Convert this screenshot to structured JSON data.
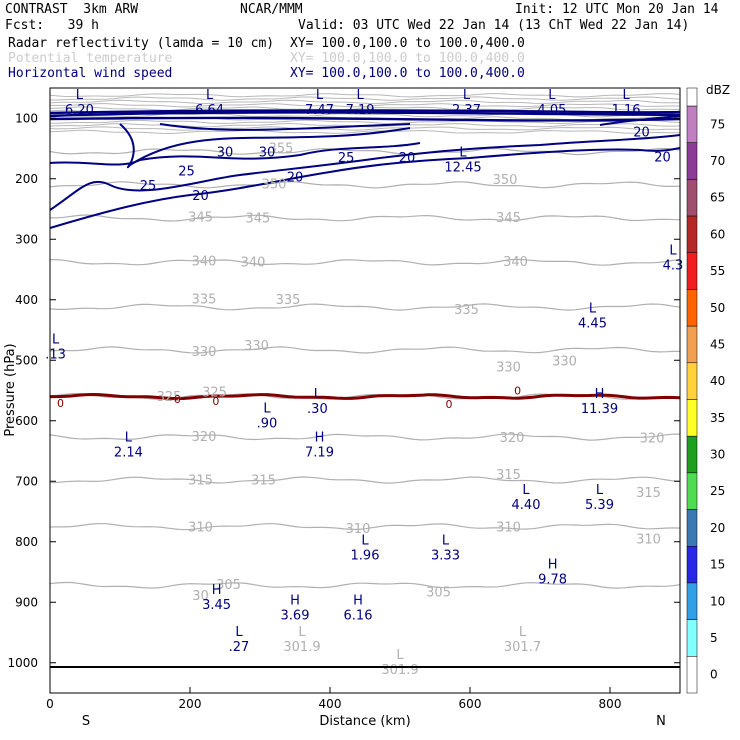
{
  "header": {
    "experiment": "CONTRAST  3km ARW",
    "center": "NCAR/MMM",
    "init": "Init: 12 UTC Mon 20 Jan 14",
    "fcst": "Fcst:   39 h",
    "valid": "Valid: 03 UTC Wed 22 Jan 14 (13 ChT Wed 22 Jan 14)",
    "field1_name": "Radar reflectivity (lamda = 10 cm)",
    "field1_xy": "XY= 100.0,100.0 to 100.0,400.0",
    "field2_name": "Potential temperature",
    "field2_xy": "XY= 100.0,100.0 to 100.0,400.0",
    "field3_name": "Horizontal wind speed",
    "field3_xy": "XY= 100.0,100.0 to 100.0,400.0"
  },
  "colors": {
    "wind": "#000080",
    "theta": "#b0b0b0",
    "freezing": "#800000",
    "axis": "#000000"
  },
  "chart_data": {
    "type": "cross-section",
    "xlabel": "Distance (km)",
    "ylabel": "Pressure (hPa)",
    "xlim": [
      0,
      900
    ],
    "ylim": [
      1050,
      50
    ],
    "xticks": [
      "0",
      "200",
      "400",
      "600",
      "800"
    ],
    "yticks": [
      "100",
      "200",
      "300",
      "400",
      "500",
      "600",
      "700",
      "800",
      "900",
      "1000"
    ],
    "direction_left": "S",
    "direction_right": "N",
    "theta_levels": [
      {
        "label": "355",
        "p": 155
      },
      {
        "label": "350",
        "p": 210
      },
      {
        "label": "345",
        "p": 265
      },
      {
        "label": "340",
        "p": 338
      },
      {
        "label": "335",
        "p": 412
      },
      {
        "label": "330",
        "p": 483
      },
      {
        "label": "325",
        "p": 560
      },
      {
        "label": "320",
        "p": 627
      },
      {
        "label": "315",
        "p": 698
      },
      {
        "label": "310",
        "p": 775
      },
      {
        "label": "305",
        "p": 872
      }
    ],
    "theta_labels": [
      {
        "text": "355",
        "x": 330,
        "p": 148
      },
      {
        "text": "350",
        "x": 320,
        "p": 208
      },
      {
        "text": "350",
        "x": 650,
        "p": 200
      },
      {
        "text": "345",
        "x": 215,
        "p": 262
      },
      {
        "text": "345",
        "x": 297,
        "p": 264
      },
      {
        "text": "345",
        "x": 655,
        "p": 263
      },
      {
        "text": "340",
        "x": 220,
        "p": 335
      },
      {
        "text": "340",
        "x": 290,
        "p": 337
      },
      {
        "text": "340",
        "x": 665,
        "p": 336
      },
      {
        "text": "335",
        "x": 220,
        "p": 398
      },
      {
        "text": "335",
        "x": 340,
        "p": 399
      },
      {
        "text": "335",
        "x": 595,
        "p": 415
      },
      {
        "text": "330",
        "x": 220,
        "p": 485
      },
      {
        "text": "330",
        "x": 295,
        "p": 475
      },
      {
        "text": "330",
        "x": 655,
        "p": 510
      },
      {
        "text": "330",
        "x": 735,
        "p": 500
      },
      {
        "text": "325",
        "x": 170,
        "p": 559
      },
      {
        "text": "325",
        "x": 235,
        "p": 552
      },
      {
        "text": "320",
        "x": 220,
        "p": 625
      },
      {
        "text": "320",
        "x": 660,
        "p": 627
      },
      {
        "text": "320",
        "x": 860,
        "p": 628
      },
      {
        "text": "315",
        "x": 215,
        "p": 697
      },
      {
        "text": "315",
        "x": 305,
        "p": 697
      },
      {
        "text": "315",
        "x": 655,
        "p": 688
      },
      {
        "text": "315",
        "x": 855,
        "p": 718
      },
      {
        "text": "310",
        "x": 215,
        "p": 775
      },
      {
        "text": "310",
        "x": 440,
        "p": 777
      },
      {
        "text": "310",
        "x": 655,
        "p": 775
      },
      {
        "text": "310",
        "x": 855,
        "p": 795
      },
      {
        "text": "305",
        "x": 255,
        "p": 870
      },
      {
        "text": "305",
        "x": 555,
        "p": 882
      },
      {
        "text": "30",
        "x": 215,
        "p": 888
      }
    ],
    "wind_labels": [
      {
        "text": "30",
        "x": 250,
        "p": 155
      },
      {
        "text": "30",
        "x": 310,
        "p": 155
      },
      {
        "text": "25",
        "x": 140,
        "p": 210
      },
      {
        "text": "25",
        "x": 195,
        "p": 186
      },
      {
        "text": "25",
        "x": 423,
        "p": 164
      },
      {
        "text": "20",
        "x": 215,
        "p": 227
      },
      {
        "text": "20",
        "x": 350,
        "p": 196
      },
      {
        "text": "20",
        "x": 510,
        "p": 164
      },
      {
        "text": "20",
        "x": 875,
        "p": 163
      },
      {
        "text": "20",
        "x": 845,
        "p": 122
      }
    ],
    "freezing_level": {
      "label": "0",
      "p": 560
    },
    "freezing_labels": [
      {
        "text": "0",
        "x": 15,
        "p": 569
      },
      {
        "text": "0",
        "x": 182,
        "p": 562
      },
      {
        "text": "0",
        "x": 237,
        "p": 566
      },
      {
        "text": "0",
        "x": 570,
        "p": 571
      },
      {
        "text": "0",
        "x": 668,
        "p": 548
      }
    ],
    "extrema": [
      {
        "kind": "L",
        "value": "6.20",
        "x": 42,
        "p": 75,
        "color": "nvy"
      },
      {
        "kind": "L",
        "value": "6.64",
        "x": 228,
        "p": 75,
        "color": "nvy"
      },
      {
        "kind": "L",
        "value": "7.47",
        "x": 385,
        "p": 75,
        "color": "nvy"
      },
      {
        "kind": "L",
        "value": "7.19",
        "x": 443,
        "p": 75,
        "color": "nvy"
      },
      {
        "kind": "L",
        "value": "2.37",
        "x": 595,
        "p": 75,
        "color": "nvy"
      },
      {
        "kind": "L",
        "value": "4.05",
        "x": 717,
        "p": 75,
        "color": "nvy"
      },
      {
        "kind": "L",
        "value": "1.16",
        "x": 823,
        "p": 75,
        "color": "nvy"
      },
      {
        "kind": "L",
        "value": "12.45",
        "x": 590,
        "p": 170,
        "color": "nvy"
      },
      {
        "kind": "L",
        "value": "4.3",
        "x": 890,
        "p": 332,
        "color": "nvy"
      },
      {
        "kind": "L",
        "value": "4.45",
        "x": 775,
        "p": 428,
        "color": "nvy"
      },
      {
        "kind": "L",
        "value": ".13",
        "x": 8,
        "p": 479,
        "color": "nvy"
      },
      {
        "kind": "L",
        "value": ".30",
        "x": 382,
        "p": 569,
        "color": "nvy"
      },
      {
        "kind": "H",
        "value": "11.39",
        "x": 785,
        "p": 569,
        "color": "nvy"
      },
      {
        "kind": "L",
        "value": ".90",
        "x": 310,
        "p": 593,
        "color": "nvy"
      },
      {
        "kind": "L",
        "value": "2.14",
        "x": 112,
        "p": 641,
        "color": "nvy"
      },
      {
        "kind": "H",
        "value": "7.19",
        "x": 385,
        "p": 641,
        "color": "nvy"
      },
      {
        "kind": "L",
        "value": "4.40",
        "x": 680,
        "p": 728,
        "color": "nvy"
      },
      {
        "kind": "L",
        "value": "5.39",
        "x": 785,
        "p": 728,
        "color": "nvy"
      },
      {
        "kind": "L",
        "value": "1.96",
        "x": 450,
        "p": 811,
        "color": "nvy"
      },
      {
        "kind": "L",
        "value": "3.33",
        "x": 565,
        "p": 811,
        "color": "nvy"
      },
      {
        "kind": "H",
        "value": "9.78",
        "x": 718,
        "p": 851,
        "color": "nvy"
      },
      {
        "kind": "H",
        "value": "3.45",
        "x": 238,
        "p": 893,
        "color": "nvy"
      },
      {
        "kind": "H",
        "value": "3.69",
        "x": 350,
        "p": 910,
        "color": "nvy"
      },
      {
        "kind": "H",
        "value": "6.16",
        "x": 440,
        "p": 910,
        "color": "nvy"
      },
      {
        "kind": "L",
        "value": ".27",
        "x": 270,
        "p": 962,
        "color": "nvy"
      },
      {
        "kind": "L",
        "value": "301.9",
        "x": 360,
        "p": 962,
        "color": "gry"
      },
      {
        "kind": "L",
        "value": "301.7",
        "x": 675,
        "p": 962,
        "color": "gry"
      },
      {
        "kind": "L",
        "value": "301.9",
        "x": 500,
        "p": 1000,
        "color": "gry"
      }
    ],
    "colorbar": {
      "unit": "dBZ",
      "levels": [
        {
          "label": "75",
          "color": "#c080c0"
        },
        {
          "label": "70",
          "color": "#8c3c96"
        },
        {
          "label": "65",
          "color": "#a0506e"
        },
        {
          "label": "60",
          "color": "#b42828"
        },
        {
          "label": "55",
          "color": "#f01e1e"
        },
        {
          "label": "50",
          "color": "#ff6400"
        },
        {
          "label": "45",
          "color": "#f0a050"
        },
        {
          "label": "40",
          "color": "#ffd23c"
        },
        {
          "label": "35",
          "color": "#ffff28"
        },
        {
          "label": "30",
          "color": "#1ea01e"
        },
        {
          "label": "25",
          "color": "#50dc50"
        },
        {
          "label": "20",
          "color": "#3c78b4"
        },
        {
          "label": "15",
          "color": "#2828e6"
        },
        {
          "label": "10",
          "color": "#32a0e6"
        },
        {
          "label": "5",
          "color": "#82ffff"
        },
        {
          "label": "0",
          "color": "#ffffff"
        }
      ]
    }
  }
}
